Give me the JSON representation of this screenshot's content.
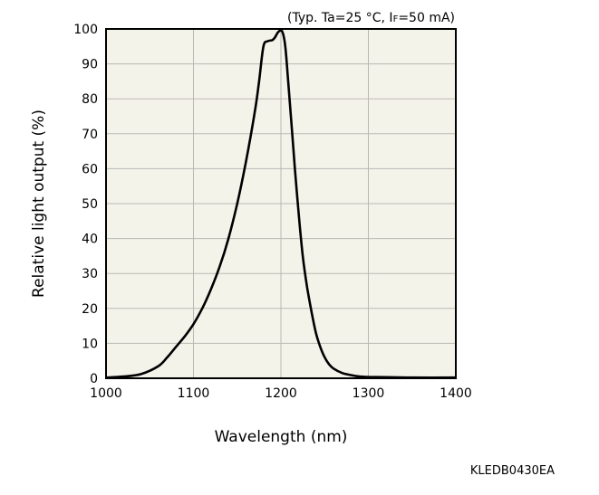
{
  "figure_code": "KLEDB0430EA",
  "chart_data": {
    "type": "line",
    "annotation": "(Typ. Ta=25 °C, IF=50 mA)",
    "annotation_parts": {
      "before": "(Typ. Ta=25 °C, I",
      "sub": "F",
      "after": "=50 mA)"
    },
    "xlabel": "Wavelength (nm)",
    "ylabel": "Relative light output (%)",
    "xlim": [
      1000,
      1400
    ],
    "ylim": [
      0,
      100
    ],
    "xticks": [
      1000,
      1100,
      1200,
      1300,
      1400
    ],
    "yticks": [
      0,
      10,
      20,
      30,
      40,
      50,
      60,
      70,
      80,
      90,
      100
    ],
    "grid": true,
    "series": [
      {
        "x": [
          1000,
          1020,
          1040,
          1060,
          1070,
          1080,
          1090,
          1100,
          1110,
          1120,
          1130,
          1140,
          1150,
          1160,
          1170,
          1175,
          1180,
          1185,
          1190,
          1193,
          1196,
          1199,
          1202,
          1205,
          1208,
          1212,
          1216,
          1220,
          1225,
          1230,
          1235,
          1240,
          1245,
          1250,
          1255,
          1260,
          1270,
          1280,
          1290,
          1300,
          1320,
          1350,
          1400
        ],
        "y": [
          0.2,
          0.5,
          1.2,
          3.5,
          6,
          9,
          12,
          15.5,
          20,
          25.5,
          32,
          40,
          50,
          62,
          76,
          85,
          95,
          96.5,
          96.8,
          97.5,
          98.8,
          99.5,
          99,
          95,
          86,
          73,
          60,
          48,
          35,
          26,
          19,
          13,
          9,
          6,
          4,
          2.8,
          1.5,
          0.9,
          0.5,
          0.4,
          0.3,
          0.2,
          0.2
        ]
      }
    ]
  }
}
